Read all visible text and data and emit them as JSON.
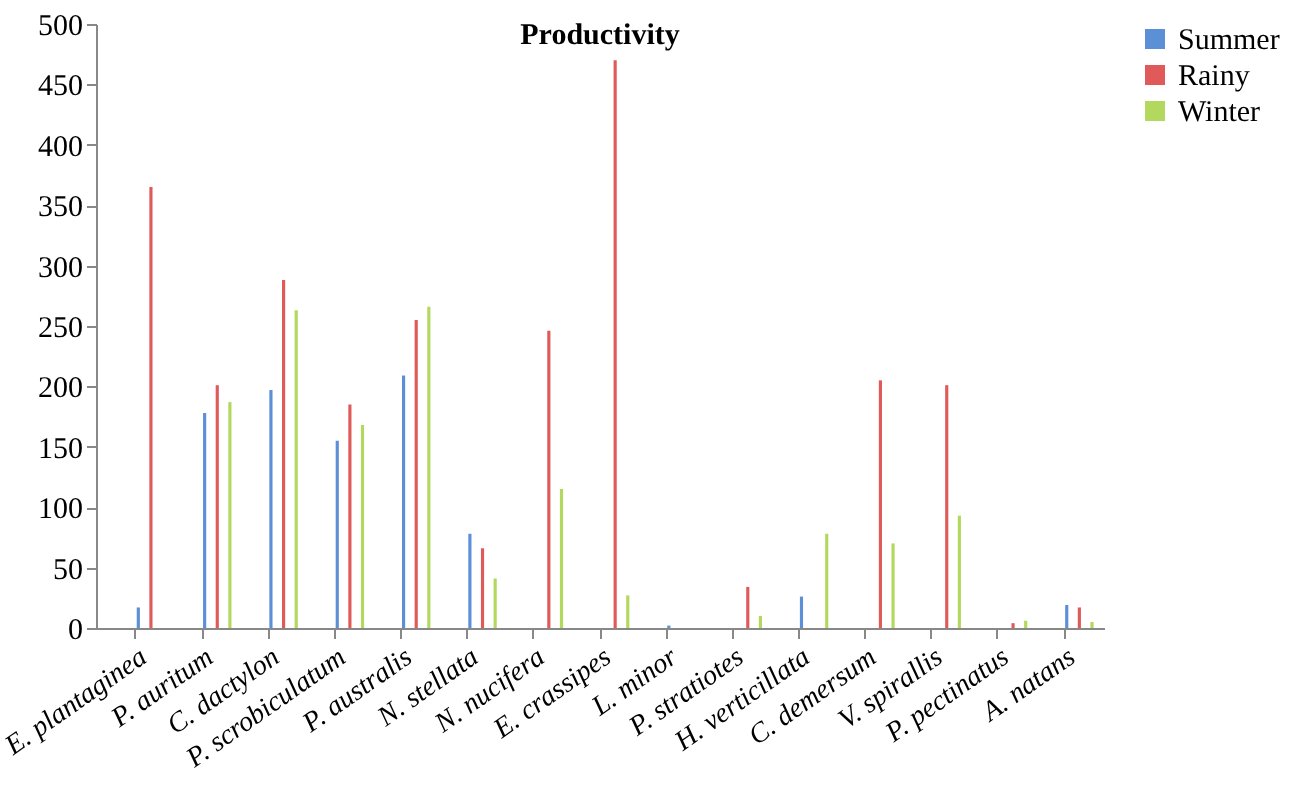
{
  "chart_data": {
    "type": "bar",
    "title": "Productivity",
    "categories": [
      "E. plantaginea",
      "P. auritum",
      "C. dactylon",
      "P. scrobiculatum",
      "P. australis",
      "N. stellata",
      "N. nucifera",
      "E. crassipes",
      "L. minor",
      "P. stratiotes",
      "H. verticillata",
      "C. demersum",
      "V. spirallis",
      "P. pectinatus",
      "A. natans"
    ],
    "series": [
      {
        "name": "Summer",
        "color": "#5b8fd6",
        "values": [
          17,
          178,
          197,
          155,
          209,
          78,
          null,
          null,
          2,
          null,
          26,
          null,
          null,
          null,
          19
        ]
      },
      {
        "name": "Rainy",
        "color": "#e05a5a",
        "values": [
          365,
          201,
          288,
          185,
          255,
          66,
          246,
          470,
          null,
          34,
          null,
          205,
          201,
          4,
          17
        ]
      },
      {
        "name": "Winter",
        "color": "#b2d85e",
        "values": [
          null,
          187,
          263,
          168,
          266,
          41,
          115,
          27,
          null,
          10,
          78,
          70,
          93,
          6,
          5
        ]
      }
    ],
    "ylim": [
      0,
      500
    ],
    "yticks": [
      0,
      50,
      100,
      150,
      200,
      250,
      300,
      350,
      400,
      450,
      500
    ],
    "grid": false,
    "legend": "right"
  }
}
